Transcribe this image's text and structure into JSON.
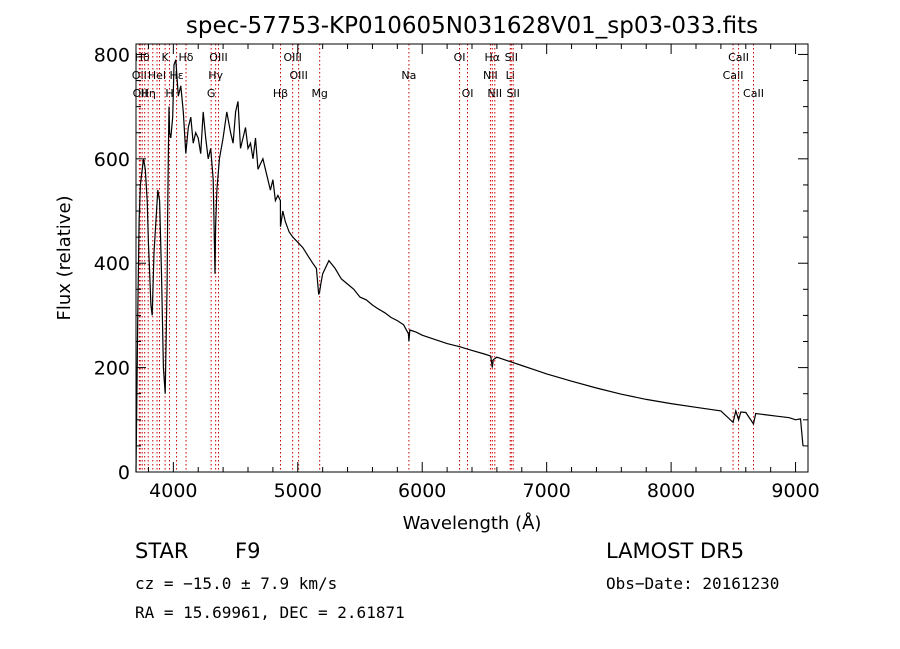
{
  "chart_data": {
    "type": "line",
    "title": "spec-57753-KP010605N031628V01_sp03-033.fits",
    "xlabel": "Wavelength (Å)",
    "ylabel": "Flux (relative)",
    "xlim": [
      3700,
      9100
    ],
    "ylim": [
      0,
      820
    ],
    "xticks": [
      4000,
      5000,
      6000,
      7000,
      8000,
      9000
    ],
    "yticks": [
      0,
      200,
      400,
      600,
      800
    ],
    "grid": false,
    "line_color": "#000000",
    "marker_color": "#cc0000",
    "series": [
      {
        "x": [
          3700,
          3715,
          3725,
          3735,
          3745,
          3760,
          3775,
          3790,
          3800,
          3810,
          3820,
          3830,
          3845,
          3860,
          3875,
          3890,
          3905,
          3920,
          3935,
          3950,
          3955,
          3960,
          3965,
          3970,
          3980,
          3995,
          4005,
          4020,
          4040,
          4060,
          4080,
          4100,
          4120,
          4140,
          4160,
          4180,
          4200,
          4220,
          4240,
          4260,
          4280,
          4300,
          4320,
          4335,
          4340,
          4350,
          4370,
          4400,
          4430,
          4460,
          4480,
          4500,
          4520,
          4540,
          4560,
          4580,
          4600,
          4620,
          4640,
          4660,
          4680,
          4700,
          4720,
          4740,
          4760,
          4780,
          4800,
          4820,
          4840,
          4860,
          4861,
          4880,
          4900,
          4930,
          4960,
          5000,
          5040,
          5080,
          5120,
          5150,
          5168,
          5175,
          5185,
          5200,
          5250,
          5300,
          5350,
          5400,
          5450,
          5500,
          5550,
          5600,
          5650,
          5700,
          5750,
          5800,
          5850,
          5889,
          5893,
          5900,
          5950,
          6000,
          6100,
          6200,
          6300,
          6400,
          6500,
          6550,
          6563,
          6570,
          6600,
          6700,
          6800,
          6900,
          7000,
          7200,
          7400,
          7600,
          7800,
          8000,
          8200,
          8400,
          8498,
          8520,
          8542,
          8560,
          8600,
          8662,
          8680,
          8750,
          8850,
          8950,
          9000,
          9040,
          9060
        ],
        "y": [
          0,
          320,
          480,
          550,
          570,
          600,
          580,
          520,
          440,
          380,
          320,
          300,
          420,
          480,
          540,
          520,
          380,
          200,
          150,
          360,
          500,
          620,
          700,
          650,
          640,
          680,
          780,
          790,
          720,
          740,
          690,
          610,
          660,
          680,
          630,
          650,
          640,
          610,
          690,
          640,
          600,
          620,
          560,
          380,
          470,
          540,
          600,
          640,
          690,
          650,
          630,
          690,
          710,
          620,
          640,
          660,
          620,
          630,
          600,
          640,
          580,
          590,
          600,
          580,
          560,
          540,
          560,
          520,
          530,
          520,
          470,
          500,
          480,
          460,
          450,
          440,
          430,
          415,
          400,
          390,
          340,
          345,
          360,
          380,
          405,
          390,
          370,
          360,
          350,
          335,
          330,
          320,
          312,
          305,
          296,
          290,
          282,
          265,
          250,
          272,
          268,
          262,
          254,
          246,
          240,
          233,
          226,
          222,
          200,
          215,
          220,
          212,
          204,
          196,
          188,
          174,
          161,
          149,
          139,
          131,
          124,
          117,
          95,
          117,
          100,
          115,
          114,
          92,
          112,
          110,
          107,
          104,
          100,
          102,
          50
        ]
      }
    ],
    "line_markers": [
      {
        "x": 3727,
        "row": 2,
        "label": "OII"
      },
      {
        "x": 3734,
        "row": 3,
        "label": "OII"
      },
      {
        "x": 3750,
        "row": 1,
        "label": "Hθ"
      },
      {
        "x": 3770,
        "row": 2,
        "label": ""
      },
      {
        "x": 3798,
        "row": 3,
        "label": "Hη"
      },
      {
        "x": 3835,
        "row": 3,
        "label": ""
      },
      {
        "x": 3869,
        "row": 2,
        "label": "HeI"
      },
      {
        "x": 3889,
        "row": 2,
        "label": ""
      },
      {
        "x": 3934,
        "row": 1,
        "label": "K"
      },
      {
        "x": 3969,
        "row": 3,
        "label": "H"
      },
      {
        "x": 4026,
        "row": 2,
        "label": "Hε"
      },
      {
        "x": 4102,
        "row": 1,
        "label": "Hδ"
      },
      {
        "x": 4304,
        "row": 3,
        "label": "G"
      },
      {
        "x": 4340,
        "row": 2,
        "label": "Hγ"
      },
      {
        "x": 4363,
        "row": 1,
        "label": "OIII"
      },
      {
        "x": 4861,
        "row": 3,
        "label": "Hβ"
      },
      {
        "x": 4959,
        "row": 1,
        "label": "OIII"
      },
      {
        "x": 5007,
        "row": 2,
        "label": "OIII"
      },
      {
        "x": 5176,
        "row": 3,
        "label": "Mg"
      },
      {
        "x": 5893,
        "row": 2,
        "label": "Na"
      },
      {
        "x": 6300,
        "row": 1,
        "label": "OI"
      },
      {
        "x": 6364,
        "row": 3,
        "label": "OI"
      },
      {
        "x": 6548,
        "row": 2,
        "label": "NII"
      },
      {
        "x": 6563,
        "row": 1,
        "label": "Hα"
      },
      {
        "x": 6583,
        "row": 3,
        "label": "NII"
      },
      {
        "x": 6707,
        "row": 2,
        "label": "Li"
      },
      {
        "x": 6716,
        "row": 1,
        "label": "SII"
      },
      {
        "x": 6731,
        "row": 3,
        "label": "SII"
      },
      {
        "x": 8498,
        "row": 2,
        "label": "CaII"
      },
      {
        "x": 8542,
        "row": 1,
        "label": "CaII"
      },
      {
        "x": 8662,
        "row": 3,
        "label": "CaII"
      }
    ]
  },
  "info": {
    "class_label": "STAR",
    "subclass": "F9",
    "survey": "LAMOST DR5",
    "cz_text": "cz = −15.0 ± 7.9 km/s",
    "obs_date": "Obs−Date: 20161230",
    "radec": "RA =  15.69961, DEC =   2.61871"
  }
}
